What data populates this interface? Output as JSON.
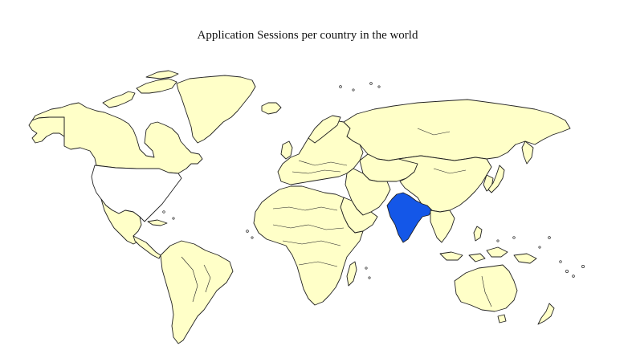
{
  "map": {
    "title": "Application Sessions per country in the world",
    "colors": {
      "default_fill": "#ffffc8",
      "no_data_fill": "#ffffff",
      "highlight_fill": "#1457e8",
      "border": "#222222"
    },
    "countries": [
      {
        "name": "India",
        "status": "highlighted"
      },
      {
        "name": "United States",
        "status": "no-data"
      }
    ]
  }
}
